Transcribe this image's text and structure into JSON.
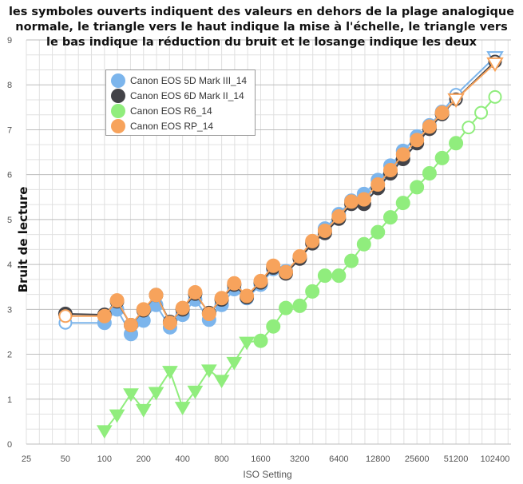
{
  "title_lines": [
    "les symboles ouverts indiquent des valeurs en dehors de la plage analogique",
    "normale, le triangle vers le haut indique la mise à l'échelle, le triangle vers",
    "le bas indique la réduction du bruit et le losange indique les deux"
  ],
  "chart_data": {
    "type": "line",
    "xlabel": "ISO Setting",
    "ylabel": "Bruit de lecture",
    "xscale": "log2",
    "xlim": [
      25,
      102400
    ],
    "ylim": [
      0,
      9
    ],
    "x_ticks": [
      "25",
      "50",
      "100",
      "200",
      "400",
      "800",
      "1600",
      "3200",
      "6400",
      "12800",
      "25600",
      "51200",
      "102400"
    ],
    "y_ticks": [
      "0",
      "1",
      "2",
      "3",
      "4",
      "5",
      "6",
      "7",
      "8",
      "9"
    ],
    "grid": true,
    "legend_position": "top-left",
    "series": [
      {
        "name": "Canon EOS 5D Mark III_14",
        "color": "#7cb5ec",
        "x": [
          50,
          100,
          125,
          160,
          200,
          250,
          320,
          400,
          500,
          640,
          800,
          1000,
          1250,
          1600,
          2000,
          2500,
          3200,
          4000,
          5000,
          6400,
          8000,
          10000,
          12800,
          16000,
          20000,
          25600,
          32000,
          40000,
          51200,
          102400
        ],
        "y": [
          2.7,
          2.7,
          3.0,
          2.45,
          2.75,
          3.1,
          2.6,
          2.88,
          3.22,
          2.77,
          3.1,
          3.45,
          3.25,
          3.55,
          3.9,
          3.85,
          4.15,
          4.5,
          4.8,
          5.12,
          5.42,
          5.57,
          5.88,
          6.2,
          6.53,
          6.85,
          7.1,
          7.4,
          7.78,
          8.62
        ],
        "markers": [
          "open-circle",
          "circle",
          "circle",
          "circle",
          "circle",
          "circle",
          "circle",
          "circle",
          "circle",
          "circle",
          "circle",
          "circle",
          "circle",
          "circle",
          "circle",
          "circle",
          "circle",
          "circle",
          "circle",
          "circle",
          "circle",
          "circle",
          "circle",
          "circle",
          "circle",
          "circle",
          "circle",
          "circle",
          "open-circle",
          "open-triangle-down"
        ]
      },
      {
        "name": "Canon EOS 6D Mark II_14",
        "color": "#434348",
        "x": [
          50,
          100,
          125,
          160,
          200,
          250,
          320,
          400,
          500,
          640,
          800,
          1000,
          1250,
          1600,
          2000,
          2500,
          3200,
          4000,
          5000,
          6400,
          8000,
          10000,
          12800,
          16000,
          20000,
          25600,
          32000,
          40000,
          51200,
          102400
        ],
        "y": [
          2.9,
          2.88,
          3.18,
          2.65,
          2.98,
          3.32,
          2.72,
          3.0,
          3.35,
          2.92,
          3.22,
          3.55,
          3.27,
          3.6,
          3.93,
          3.8,
          4.13,
          4.47,
          4.7,
          5.02,
          5.35,
          5.35,
          5.7,
          6.03,
          6.35,
          6.7,
          7.02,
          7.35,
          7.68,
          8.52
        ],
        "markers": [
          "circle",
          "circle",
          "circle",
          "circle",
          "circle",
          "circle",
          "circle",
          "circle",
          "circle",
          "circle",
          "circle",
          "circle",
          "circle",
          "circle",
          "circle",
          "circle",
          "circle",
          "circle",
          "circle",
          "circle",
          "circle",
          "circle",
          "circle",
          "circle",
          "circle",
          "circle",
          "circle",
          "circle",
          "open-circle",
          "open-circle"
        ]
      },
      {
        "name": "Canon EOS R6_14",
        "color": "#90ed7d",
        "x": [
          100,
          125,
          160,
          200,
          250,
          320,
          400,
          500,
          640,
          800,
          1000,
          1250,
          1600,
          2000,
          2500,
          3200,
          4000,
          5000,
          6400,
          8000,
          10000,
          12800,
          16000,
          20000,
          25600,
          32000,
          40000,
          51200,
          64000,
          80000,
          102400
        ],
        "y": [
          0.3,
          0.65,
          1.12,
          0.77,
          1.15,
          1.62,
          0.82,
          1.18,
          1.65,
          1.42,
          1.82,
          2.27,
          2.3,
          2.62,
          3.03,
          3.08,
          3.4,
          3.75,
          3.75,
          4.08,
          4.45,
          4.72,
          5.05,
          5.37,
          5.72,
          6.03,
          6.37,
          6.7,
          7.05,
          7.38,
          7.73
        ],
        "markers": [
          "triangle-down",
          "triangle-down",
          "triangle-down",
          "triangle-down",
          "triangle-down",
          "triangle-down",
          "triangle-down",
          "triangle-down",
          "triangle-down",
          "triangle-down",
          "triangle-down",
          "triangle-down",
          "circle",
          "circle",
          "circle",
          "circle",
          "circle",
          "circle",
          "circle",
          "circle",
          "circle",
          "circle",
          "circle",
          "circle",
          "circle",
          "circle",
          "circle",
          "circle",
          "open-circle",
          "open-circle",
          "open-circle"
        ]
      },
      {
        "name": "Canon EOS RP_14",
        "color": "#f7a35c",
        "x": [
          50,
          100,
          125,
          160,
          200,
          250,
          320,
          400,
          500,
          640,
          800,
          1000,
          1250,
          1600,
          2000,
          2500,
          3200,
          4000,
          5000,
          6400,
          8000,
          10000,
          12800,
          16000,
          20000,
          25600,
          32000,
          40000,
          51200,
          102400
        ],
        "y": [
          2.85,
          2.85,
          3.2,
          2.65,
          3.0,
          3.32,
          2.7,
          3.03,
          3.38,
          2.9,
          3.25,
          3.58,
          3.3,
          3.63,
          3.97,
          3.83,
          4.18,
          4.52,
          4.75,
          5.07,
          5.4,
          5.45,
          5.78,
          6.1,
          6.45,
          6.77,
          7.07,
          7.38,
          7.68,
          8.48
        ],
        "markers": [
          "open-circle",
          "circle",
          "circle",
          "circle",
          "circle",
          "circle",
          "circle",
          "circle",
          "circle",
          "circle",
          "circle",
          "circle",
          "circle",
          "circle",
          "circle",
          "circle",
          "circle",
          "circle",
          "circle",
          "circle",
          "circle",
          "circle",
          "circle",
          "circle",
          "circle",
          "circle",
          "circle",
          "circle",
          "open-triangle-down",
          "open-triangle-down"
        ]
      }
    ]
  }
}
